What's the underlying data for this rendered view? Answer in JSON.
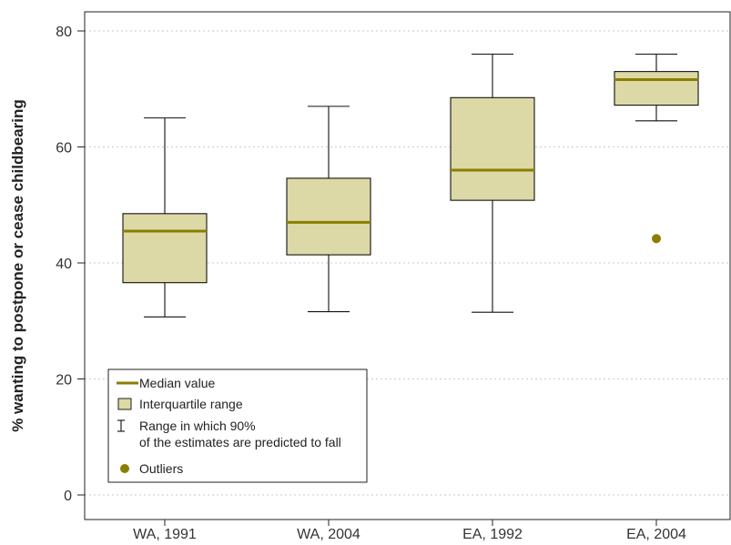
{
  "chart_data": {
    "type": "box",
    "title": "",
    "xlabel": "",
    "ylabel": "% wanting to postpone or cease childbearing",
    "ylim": [
      0,
      80
    ],
    "yticks": [
      0,
      20,
      40,
      60,
      80
    ],
    "grid": true,
    "categories": [
      "WA, 1991",
      "WA, 2004",
      "EA, 1992",
      "EA, 2004"
    ],
    "boxes": [
      {
        "category": "WA, 1991",
        "whisker_low": 30.7,
        "q1": 36.6,
        "median": 45.5,
        "q3": 48.5,
        "whisker_high": 65.0,
        "outliers": []
      },
      {
        "category": "WA, 2004",
        "whisker_low": 31.6,
        "q1": 41.4,
        "median": 47.0,
        "q3": 54.6,
        "whisker_high": 67.0,
        "outliers": []
      },
      {
        "category": "EA, 1992",
        "whisker_low": 31.5,
        "q1": 50.8,
        "median": 56.0,
        "q3": 68.5,
        "whisker_high": 76.0,
        "outliers": []
      },
      {
        "category": "EA, 2004",
        "whisker_low": 64.5,
        "q1": 67.2,
        "median": 71.6,
        "q3": 73.0,
        "whisker_high": 76.0,
        "outliers": [
          44.2
        ]
      }
    ],
    "legend": {
      "position": "bottom-left",
      "items": [
        {
          "key": "median",
          "label": "Median value"
        },
        {
          "key": "iqr",
          "label": "Interquartile range"
        },
        {
          "key": "range",
          "label": "Range in which 90%",
          "label_line2": "of the estimates are predicted to fall"
        },
        {
          "key": "outliers",
          "label": "Outliers"
        }
      ]
    },
    "colors": {
      "box_fill": "#ddd9a6",
      "median": "#8a7e00",
      "outlier": "#8a7e00",
      "stroke": "#111111",
      "grid": "#c8c8c8"
    }
  }
}
